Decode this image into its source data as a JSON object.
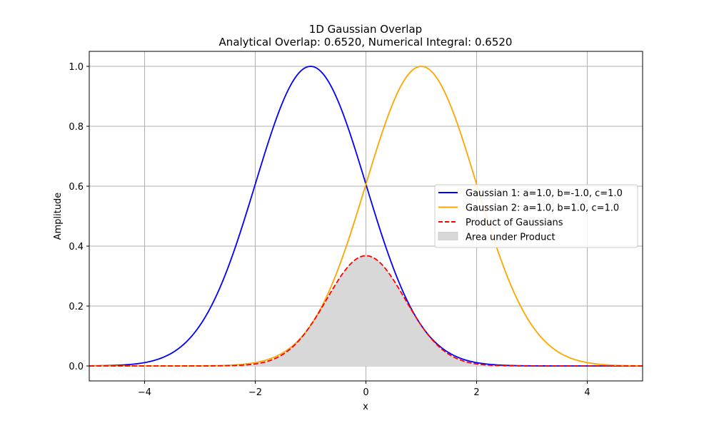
{
  "chart_data": {
    "type": "line",
    "title": "1D Gaussian Overlap",
    "subtitle": "Analytical Overlap: 0.6520, Numerical Integral: 0.6520",
    "xlabel": "x",
    "ylabel": "Amplitude",
    "xlim": [
      -5,
      5
    ],
    "ylim": [
      -0.05,
      1.05
    ],
    "xticks": [
      -4,
      -2,
      0,
      2,
      4
    ],
    "xtick_labels": [
      "−4",
      "−2",
      "0",
      "2",
      "4"
    ],
    "yticks": [
      0.0,
      0.2,
      0.4,
      0.6,
      0.8,
      1.0
    ],
    "ytick_labels": [
      "0.0",
      "0.2",
      "0.4",
      "0.6",
      "0.8",
      "1.0"
    ],
    "grid": true,
    "legend_position": "center-right",
    "series": [
      {
        "name": "Gaussian 1: a=1.0, b=-1.0, c=1.0",
        "kind": "gaussian",
        "a": 1.0,
        "b": -1.0,
        "c": 1.0,
        "color": "#0000ff",
        "style": "solid"
      },
      {
        "name": "Gaussian 2: a=1.0, b=1.0, c=1.0",
        "kind": "gaussian",
        "a": 1.0,
        "b": 1.0,
        "c": 1.0,
        "color": "#ffa500",
        "style": "solid"
      },
      {
        "name": "Product of Gaussians",
        "kind": "product",
        "color": "#ff0000",
        "style": "dashed"
      },
      {
        "name": "Area under Product",
        "kind": "fill",
        "color": "#d8d8d8",
        "style": "fill"
      }
    ]
  }
}
